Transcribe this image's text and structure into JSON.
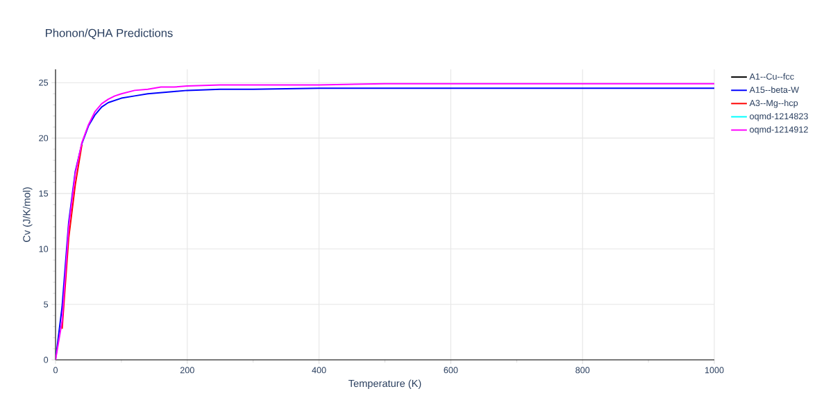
{
  "chart_data": {
    "type": "line",
    "title": "Phonon/QHA Predictions",
    "xlabel": "Temperature (K)",
    "ylabel": "Cv (J/K/mol)",
    "x": [
      0,
      10,
      20,
      30,
      40,
      50,
      60,
      70,
      80,
      90,
      100,
      120,
      140,
      160,
      180,
      200,
      250,
      300,
      400,
      500,
      600,
      800,
      1000
    ],
    "series": [
      {
        "name": "A1--Cu--fcc",
        "color": "#000000",
        "values": [
          null,
          null,
          null,
          null,
          null,
          null,
          null,
          null,
          null,
          null,
          null,
          null,
          null,
          null,
          null,
          null,
          null,
          null,
          null,
          null,
          null,
          null,
          null
        ]
      },
      {
        "name": "A15--beta-W",
        "color": "#0000ff",
        "values": [
          0,
          4.8,
          12.4,
          17.0,
          19.5,
          21.1,
          22.1,
          22.8,
          23.2,
          23.4,
          23.6,
          23.8,
          24.0,
          24.1,
          24.2,
          24.3,
          24.4,
          24.4,
          24.5,
          24.5,
          24.5,
          24.5,
          24.5
        ]
      },
      {
        "name": "A3--Mg--hcp",
        "color": "#ff0000",
        "values": [
          null,
          2.8,
          11.0,
          15.8,
          19.4,
          null,
          null,
          null,
          null,
          null,
          null,
          null,
          null,
          null,
          null,
          null,
          null,
          null,
          null,
          null,
          null,
          null,
          null
        ]
      },
      {
        "name": "oqmd-1214823",
        "color": "#00ffff",
        "values": [
          null,
          null,
          null,
          null,
          null,
          null,
          null,
          null,
          null,
          null,
          null,
          null,
          null,
          null,
          null,
          null,
          null,
          null,
          null,
          null,
          null,
          null,
          null
        ]
      },
      {
        "name": "oqmd-1214912",
        "color": "#ff00ff",
        "values": [
          0,
          3.5,
          12.0,
          16.8,
          19.6,
          21.2,
          22.4,
          23.1,
          23.5,
          23.8,
          24.0,
          24.3,
          24.4,
          24.6,
          24.6,
          24.7,
          24.8,
          24.8,
          24.8,
          24.9,
          24.9,
          24.9,
          24.9
        ]
      }
    ],
    "xlim": [
      0,
      1000
    ],
    "ylim": [
      0,
      26.2
    ],
    "xticks": [
      0,
      200,
      400,
      600,
      800,
      1000
    ],
    "yticks": [
      0,
      5,
      10,
      15,
      20,
      25
    ],
    "grid": true,
    "legend": "top right",
    "marker": "none",
    "line_style": "solid"
  }
}
